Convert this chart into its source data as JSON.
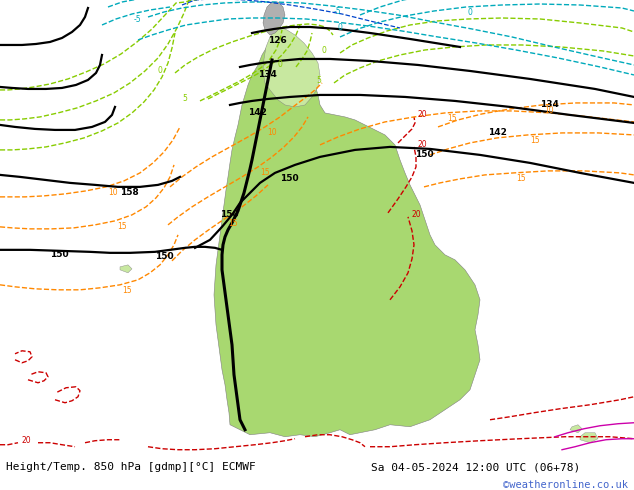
{
  "title_left": "Height/Temp. 850 hPa [gdmp][°C] ECMWF",
  "title_right": "Sa 04-05-2024 12:00 UTC (06+78)",
  "copyright": "©weatheronline.co.uk",
  "fig_width": 6.34,
  "fig_height": 4.9,
  "dpi": 100,
  "bg_color": "#d8d8d8",
  "land_green_light": "#c8e8a0",
  "land_green": "#a8d870",
  "land_gray_color": "#b0b0b0",
  "title_fontsize": 8.0,
  "copyright_fontsize": 7.5,
  "copyright_color": "#4466cc",
  "bottom_bar_color": "#c8c8c8",
  "bottom_bar_height": 0.072
}
